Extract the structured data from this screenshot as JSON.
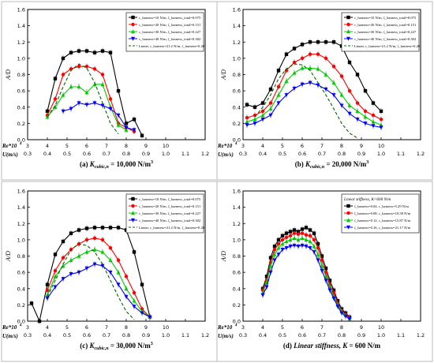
{
  "chart_data": [
    {
      "type": "line",
      "caption": {
        "letter": "(a)",
        "symbol": "K",
        "sub": "cubic,n",
        "equals": "=",
        "value": "10,000 N/m",
        "unit_exp": "3"
      },
      "ylabel": "A/D",
      "xlabel": "U(m/s)",
      "x2label": "Re*10",
      "x2label_exp": "4",
      "xlim": [
        0.3,
        1.2
      ],
      "ylim": [
        0,
        1.6
      ],
      "xticks": [
        "0.3",
        "0.4",
        "0.5",
        "0.6",
        "0.7",
        "0.8",
        "0.9",
        "1.0",
        "1.1",
        "1.2"
      ],
      "yticks": [
        "0.0",
        "0.2",
        "0.4",
        "0.6",
        "0.8",
        "1.0",
        "1.2",
        "1.4",
        "1.6"
      ],
      "x2ticks": [
        "3",
        "4",
        "5",
        "6",
        "7",
        "8",
        "9",
        "10"
      ],
      "legend": [
        "c_harness=10 N/m, ζ_harness_total=0.075",
        "c_harness=20 N/m, ζ_harness_total=0.151",
        "c_harness=30 N/m, ζ_harness_total=0.227",
        "c_harness=40 N/m, ζ_harness_total=0.302",
        "Linear, c_harness=21.2 N/m, ζ_harness=0.20"
      ],
      "series": [
        {
          "color": "#000000",
          "marker": "square",
          "x": [
            0.4,
            0.44,
            0.48,
            0.52,
            0.56,
            0.6,
            0.64,
            0.68,
            0.72,
            0.76,
            0.8,
            0.84,
            0.88
          ],
          "y": [
            0.35,
            0.75,
            1.0,
            1.07,
            1.09,
            1.09,
            1.07,
            1.09,
            1.07,
            0.6,
            0.2,
            0.25,
            0.05
          ]
        },
        {
          "color": "#ff0000",
          "marker": "circle",
          "x": [
            0.4,
            0.44,
            0.48,
            0.52,
            0.56,
            0.6,
            0.64,
            0.68,
            0.72,
            0.76,
            0.8,
            0.84
          ],
          "y": [
            0.3,
            0.5,
            0.8,
            0.87,
            0.9,
            0.9,
            0.87,
            0.8,
            0.5,
            0.2,
            0.15,
            0.1
          ]
        },
        {
          "color": "#00cc00",
          "marker": "triangle",
          "x": [
            0.4,
            0.44,
            0.48,
            0.52,
            0.56,
            0.6,
            0.64,
            0.68,
            0.72,
            0.76,
            0.8
          ],
          "y": [
            0.28,
            0.4,
            0.55,
            0.65,
            0.65,
            0.58,
            0.68,
            0.68,
            0.4,
            0.18,
            0.12
          ]
        },
        {
          "color": "#0000ff",
          "marker": "triangle-down",
          "x": [
            0.48,
            0.52,
            0.56,
            0.6,
            0.64,
            0.68,
            0.72,
            0.76,
            0.8,
            0.84
          ],
          "y": [
            0.35,
            0.38,
            0.45,
            0.43,
            0.45,
            0.42,
            0.38,
            0.3,
            0.15,
            0.12
          ]
        },
        {
          "color": "#006600",
          "dashed": true,
          "x": [
            0.4,
            0.44,
            0.48,
            0.52,
            0.56,
            0.6,
            0.64,
            0.68,
            0.72,
            0.76
          ],
          "y": [
            0.28,
            0.42,
            0.65,
            0.85,
            0.93,
            0.88,
            0.7,
            0.45,
            0.2,
            0.07
          ]
        }
      ]
    },
    {
      "type": "line",
      "caption": {
        "letter": "(b)",
        "symbol": "K",
        "sub": "cubic,n",
        "equals": "=",
        "value": "20,000 N/m",
        "unit_exp": "3"
      },
      "ylabel": "A/D",
      "xlabel": "U(m/s)",
      "x2label": "Re*10",
      "x2label_exp": "4",
      "xlim": [
        0.3,
        1.2
      ],
      "ylim": [
        0,
        1.6
      ],
      "xticks": [
        "0.3",
        "0.4",
        "0.5",
        "0.6",
        "0.7",
        "0.8",
        "0.9",
        "1.0",
        "1.1",
        "1.2"
      ],
      "yticks": [
        "0.0",
        "0.2",
        "0.4",
        "0.6",
        "0.8",
        "1.0",
        "1.2",
        "1.4",
        "1.6"
      ],
      "x2ticks": [
        "3",
        "4",
        "5",
        "6",
        "7",
        "8",
        "9",
        "10"
      ],
      "legend": [
        "c_harness=10 N/m, ζ_harness_total=0.075",
        "c_harness=20 N/m, ζ_harness_total=0.151",
        "c_harness=30 N/m, ζ_harness_total=0.227",
        "c_harness=40 N/m, ζ_harness_total=0.302",
        "Linear, c_harness=21.2 N/m, ζ_harness=0.20"
      ],
      "series": [
        {
          "color": "#000000",
          "marker": "square",
          "x": [
            0.32,
            0.36,
            0.4,
            0.44,
            0.48,
            0.52,
            0.56,
            0.6,
            0.64,
            0.68,
            0.72,
            0.76,
            0.8,
            0.84,
            0.88,
            0.92,
            0.96,
            1.0
          ],
          "y": [
            0.43,
            0.4,
            0.45,
            0.62,
            0.85,
            1.05,
            1.12,
            1.17,
            1.2,
            1.2,
            1.2,
            1.2,
            1.15,
            0.95,
            0.8,
            0.6,
            0.45,
            0.35
          ]
        },
        {
          "color": "#ff0000",
          "marker": "circle",
          "x": [
            0.32,
            0.36,
            0.4,
            0.44,
            0.48,
            0.52,
            0.56,
            0.6,
            0.64,
            0.68,
            0.72,
            0.76,
            0.8,
            0.84,
            0.88,
            0.92,
            0.96,
            1.0
          ],
          "y": [
            0.27,
            0.3,
            0.35,
            0.45,
            0.65,
            0.85,
            0.95,
            1.0,
            1.05,
            1.05,
            1.0,
            0.9,
            0.78,
            0.6,
            0.45,
            0.35,
            0.3,
            0.25
          ]
        },
        {
          "color": "#00cc00",
          "marker": "triangle",
          "x": [
            0.32,
            0.36,
            0.4,
            0.44,
            0.48,
            0.52,
            0.56,
            0.6,
            0.64,
            0.68,
            0.72,
            0.76,
            0.8,
            0.84,
            0.88,
            0.92,
            0.96,
            1.0
          ],
          "y": [
            0.22,
            0.25,
            0.3,
            0.38,
            0.55,
            0.72,
            0.82,
            0.88,
            0.88,
            0.87,
            0.8,
            0.7,
            0.55,
            0.42,
            0.35,
            0.28,
            0.22,
            0.18
          ]
        },
        {
          "color": "#0000ff",
          "marker": "triangle-down",
          "x": [
            0.32,
            0.36,
            0.4,
            0.44,
            0.48,
            0.52,
            0.56,
            0.6,
            0.64,
            0.68,
            0.72,
            0.76,
            0.8,
            0.84,
            0.88,
            0.92,
            0.96,
            1.0
          ],
          "y": [
            0.18,
            0.2,
            0.25,
            0.3,
            0.45,
            0.55,
            0.63,
            0.68,
            0.7,
            0.67,
            0.62,
            0.55,
            0.42,
            0.32,
            0.25,
            0.2,
            0.17,
            0.15
          ]
        },
        {
          "color": "#006600",
          "dashed": true,
          "x": [
            0.36,
            0.4,
            0.44,
            0.48,
            0.52,
            0.56,
            0.6,
            0.64,
            0.68,
            0.72,
            0.76,
            0.8,
            0.84,
            0.88
          ],
          "y": [
            0.28,
            0.4,
            0.55,
            0.75,
            0.87,
            0.93,
            0.92,
            0.85,
            0.7,
            0.55,
            0.38,
            0.2,
            0.08,
            0.02
          ]
        }
      ]
    },
    {
      "type": "line",
      "caption": {
        "letter": "(c)",
        "symbol": "K",
        "sub": "cubic,n",
        "equals": "=",
        "value": "30,000 N/m",
        "unit_exp": "3"
      },
      "ylabel": "A/D",
      "xlabel": "U(m/s)",
      "x2label": "Re*10",
      "x2label_exp": "4",
      "xlim": [
        0.3,
        1.2
      ],
      "ylim": [
        0,
        1.6
      ],
      "xticks": [
        "0.3",
        "0.4",
        "0.5",
        "0.6",
        "0.7",
        "0.8",
        "0.9",
        "1.0",
        "1.1",
        "1.2"
      ],
      "yticks": [
        "0.0",
        "0.2",
        "0.4",
        "0.6",
        "0.8",
        "1.0",
        "1.2",
        "1.4",
        "1.6"
      ],
      "x2ticks": [
        "3",
        "4",
        "5",
        "6",
        "7",
        "8",
        "9",
        "10"
      ],
      "legend": [
        "c_harness=10 N/m, ζ_harness_total=0.075",
        "c_harness=20 N/m, ζ_harness_total=0.151",
        "c_harness=30 N/m, ζ_harness_total=0.227",
        "c_harness=40 N/m, ζ_harness_total=0.302",
        "Linear, c_harness=21.2 N/m, ζ_harness=0.20"
      ],
      "series": [
        {
          "color": "#000000",
          "marker": "square",
          "x": [
            0.32,
            0.36,
            0.4,
            0.44,
            0.48,
            0.52,
            0.56,
            0.6,
            0.64,
            0.68,
            0.72,
            0.76,
            0.8,
            0.84,
            0.88,
            0.92
          ],
          "y": [
            0.22,
            0.0,
            0.45,
            0.82,
            0.98,
            1.08,
            1.12,
            1.14,
            1.15,
            1.15,
            1.15,
            1.15,
            1.12,
            0.85,
            0.45,
            0.05
          ]
        },
        {
          "color": "#ff0000",
          "marker": "circle",
          "x": [
            0.4,
            0.44,
            0.48,
            0.52,
            0.56,
            0.6,
            0.64,
            0.68,
            0.72,
            0.76,
            0.8,
            0.84,
            0.88,
            0.92
          ],
          "y": [
            0.38,
            0.62,
            0.78,
            0.88,
            0.95,
            1.0,
            1.02,
            1.0,
            0.9,
            0.75,
            0.55,
            0.35,
            0.15,
            0.05
          ]
        },
        {
          "color": "#00cc00",
          "marker": "triangle",
          "x": [
            0.4,
            0.44,
            0.48,
            0.52,
            0.56,
            0.6,
            0.64,
            0.68,
            0.72,
            0.76,
            0.8,
            0.84,
            0.88,
            0.92
          ],
          "y": [
            0.32,
            0.55,
            0.68,
            0.75,
            0.8,
            0.85,
            0.88,
            0.85,
            0.75,
            0.6,
            0.4,
            0.25,
            0.12,
            0.05
          ]
        },
        {
          "color": "#0000ff",
          "marker": "triangle-down",
          "x": [
            0.4,
            0.44,
            0.48,
            0.52,
            0.56,
            0.6,
            0.64,
            0.68,
            0.72,
            0.76,
            0.8,
            0.84,
            0.88,
            0.92
          ],
          "y": [
            0.28,
            0.42,
            0.52,
            0.58,
            0.6,
            0.65,
            0.7,
            0.68,
            0.6,
            0.45,
            0.3,
            0.18,
            0.1,
            0.05
          ]
        },
        {
          "color": "#006600",
          "dashed": true,
          "x": [
            0.4,
            0.44,
            0.48,
            0.52,
            0.56,
            0.6,
            0.64,
            0.68,
            0.72,
            0.76,
            0.8,
            0.84
          ],
          "y": [
            0.3,
            0.5,
            0.7,
            0.88,
            0.95,
            0.93,
            0.85,
            0.7,
            0.5,
            0.3,
            0.12,
            0.02
          ]
        }
      ]
    },
    {
      "type": "line",
      "caption": {
        "letter": "(d)",
        "symbol": "Linear stiffness, K",
        "sub": "",
        "equals": "=",
        "value": "600 N/m",
        "unit_exp": ""
      },
      "ylabel": "A/D",
      "xlabel": "U(m/s)",
      "x2label": "Re*10",
      "x2label_exp": "4",
      "xlim": [
        0.3,
        1.2
      ],
      "ylim": [
        0,
        1.6
      ],
      "xticks": [
        "0.3",
        "0.4",
        "0.5",
        "0.6",
        "0.7",
        "0.8",
        "0.9",
        "1.0",
        "1.1",
        "1.2"
      ],
      "yticks": [
        "0.0",
        "0.2",
        "0.4",
        "0.6",
        "0.8",
        "1.0",
        "1.2",
        "1.4",
        "1.6"
      ],
      "x2ticks": [
        "3",
        "4",
        "5",
        "6",
        "7",
        "8",
        "9",
        "10"
      ],
      "legend_title": "Linear stiffness, K=600 N/m",
      "legend": [
        "ζ_harness=0.04, c_harness=5.29 N/m",
        "ζ_harness=0.08, c_harness=10.58 N/m",
        "ζ_harness=0.12, c_harness=15.87 N/m",
        "ζ_harness=0.16, c_harness=21.17 N/m"
      ],
      "series": [
        {
          "color": "#000000",
          "marker": "square",
          "x": [
            0.4,
            0.42,
            0.44,
            0.46,
            0.48,
            0.5,
            0.52,
            0.54,
            0.56,
            0.58,
            0.6,
            0.62,
            0.64,
            0.66,
            0.68,
            0.7,
            0.72,
            0.74,
            0.76,
            0.78,
            0.8,
            0.82,
            0.84
          ],
          "y": [
            0.4,
            0.55,
            0.78,
            0.92,
            1.0,
            1.05,
            1.08,
            1.1,
            1.12,
            1.1,
            1.13,
            1.15,
            1.12,
            1.08,
            0.95,
            0.8,
            0.65,
            0.5,
            0.38,
            0.25,
            0.15,
            0.1,
            0.05
          ]
        },
        {
          "color": "#ff0000",
          "marker": "circle",
          "x": [
            0.4,
            0.42,
            0.44,
            0.46,
            0.48,
            0.5,
            0.52,
            0.54,
            0.56,
            0.58,
            0.6,
            0.62,
            0.64,
            0.66,
            0.68,
            0.7,
            0.72,
            0.74,
            0.76,
            0.78,
            0.8,
            0.82,
            0.84
          ],
          "y": [
            0.38,
            0.5,
            0.72,
            0.88,
            0.95,
            1.0,
            1.03,
            1.05,
            1.08,
            1.07,
            1.08,
            1.06,
            1.05,
            1.0,
            0.9,
            0.75,
            0.6,
            0.45,
            0.35,
            0.22,
            0.13,
            0.08,
            0.04
          ]
        },
        {
          "color": "#00cc00",
          "marker": "triangle",
          "x": [
            0.4,
            0.42,
            0.44,
            0.46,
            0.48,
            0.5,
            0.52,
            0.54,
            0.56,
            0.58,
            0.6,
            0.62,
            0.64,
            0.66,
            0.68,
            0.7,
            0.72,
            0.74,
            0.76,
            0.78,
            0.8,
            0.82,
            0.84
          ],
          "y": [
            0.35,
            0.48,
            0.68,
            0.82,
            0.9,
            0.95,
            0.98,
            1.0,
            1.02,
            1.0,
            1.02,
            1.0,
            0.98,
            0.92,
            0.82,
            0.68,
            0.55,
            0.42,
            0.3,
            0.2,
            0.12,
            0.07,
            0.03
          ]
        },
        {
          "color": "#0000ff",
          "marker": "triangle-down",
          "x": [
            0.4,
            0.42,
            0.44,
            0.46,
            0.48,
            0.5,
            0.52,
            0.54,
            0.56,
            0.58,
            0.6,
            0.62,
            0.64,
            0.66,
            0.68,
            0.7,
            0.72,
            0.74,
            0.76,
            0.78,
            0.8,
            0.82,
            0.84
          ],
          "y": [
            0.32,
            0.42,
            0.6,
            0.75,
            0.82,
            0.88,
            0.9,
            0.92,
            0.93,
            0.92,
            0.93,
            0.92,
            0.9,
            0.85,
            0.75,
            0.62,
            0.5,
            0.38,
            0.28,
            0.18,
            0.1,
            0.06,
            0.03
          ]
        }
      ]
    }
  ]
}
